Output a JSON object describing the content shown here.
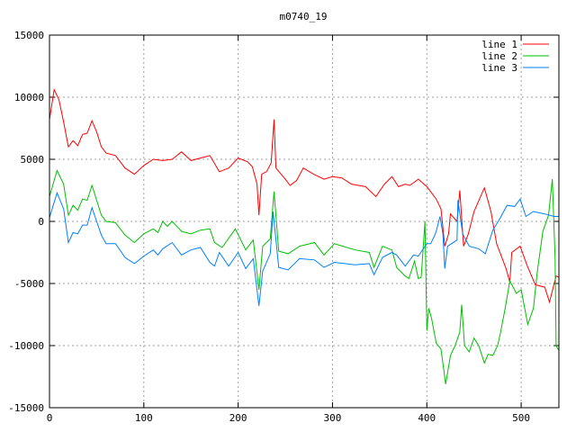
{
  "chart_data": {
    "type": "line",
    "title": "m0740_19",
    "xlabel": "",
    "ylabel": "",
    "xlim": [
      0,
      540
    ],
    "ylim": [
      -15000,
      15000
    ],
    "xticks": [
      0,
      100,
      200,
      300,
      400,
      500
    ],
    "yticks": [
      -15000,
      -10000,
      -5000,
      0,
      5000,
      10000,
      15000
    ],
    "grid": true,
    "legend_position": "top-right",
    "series": [
      {
        "name": "line 1",
        "color": "#ff0000",
        "x": [
          0,
          5,
          10,
          15,
          20,
          25,
          30,
          35,
          40,
          45,
          50,
          55,
          60,
          70,
          80,
          90,
          100,
          110,
          120,
          130,
          140,
          150,
          160,
          170,
          180,
          190,
          200,
          210,
          215,
          220,
          222,
          225,
          230,
          235,
          238,
          240,
          250,
          255,
          262,
          269,
          280,
          291,
          300,
          310,
          320,
          335,
          346,
          355,
          363,
          370,
          377,
          382,
          391,
          400,
          410,
          415,
          419,
          423,
          425,
          432,
          435,
          439,
          444,
          450,
          461,
          468,
          474,
          484,
          488,
          490,
          499,
          506,
          515,
          525,
          530,
          537,
          540
        ],
        "y": [
          8200,
          10600,
          9800,
          8000,
          6000,
          6500,
          6100,
          7000,
          7100,
          8100,
          7200,
          6000,
          5500,
          5300,
          4300,
          3800,
          4500,
          5000,
          4900,
          5000,
          5600,
          4900,
          5100,
          5300,
          4000,
          4300,
          5100,
          4800,
          4400,
          3000,
          500,
          3800,
          4000,
          4700,
          8200,
          4300,
          3400,
          2900,
          3300,
          4300,
          3800,
          3400,
          3600,
          3500,
          3000,
          2800,
          2000,
          3000,
          3600,
          2800,
          3000,
          2900,
          3400,
          2800,
          1800,
          1000,
          -2000,
          -1000,
          600,
          0,
          2500,
          -2000,
          -1000,
          800,
          2700,
          800,
          -1800,
          -3800,
          -4900,
          -2500,
          -2000,
          -3500,
          -5100,
          -5300,
          -6500,
          -4400,
          -4500
        ]
      },
      {
        "name": "line 2",
        "color": "#00c000",
        "x": [
          0,
          8,
          15,
          20,
          25,
          30,
          35,
          40,
          45,
          50,
          55,
          60,
          70,
          80,
          90,
          100,
          110,
          115,
          120,
          125,
          130,
          140,
          150,
          160,
          170,
          175,
          183,
          197,
          208,
          216,
          222,
          226,
          234,
          238,
          243,
          253,
          265,
          281,
          291,
          302,
          324,
          339,
          344,
          353,
          363,
          368,
          377,
          381,
          387,
          391,
          394,
          398,
          400,
          402,
          405,
          410,
          415,
          420,
          425,
          430,
          435,
          437,
          440,
          445,
          450,
          455,
          461,
          465,
          470,
          475,
          478,
          483,
          488,
          495,
          500,
          507,
          513,
          517,
          523,
          529,
          533,
          536,
          537,
          540
        ],
        "y": [
          2000,
          4100,
          3000,
          500,
          1300,
          900,
          1800,
          1700,
          2900,
          1700,
          500,
          0,
          -100,
          -1100,
          -1700,
          -1000,
          -600,
          -900,
          0,
          -400,
          0,
          -800,
          -1000,
          -700,
          -600,
          -1700,
          -2100,
          -600,
          -2300,
          -1500,
          -5500,
          -2000,
          -1400,
          2400,
          -2400,
          -2600,
          -2000,
          -1700,
          -2700,
          -1800,
          -2300,
          -2500,
          -3700,
          -2000,
          -2300,
          -3700,
          -4400,
          -4600,
          -3200,
          -4600,
          -4500,
          0,
          -8800,
          -7000,
          -7800,
          -9800,
          -10300,
          -13100,
          -10800,
          -10000,
          -8900,
          -6700,
          -10000,
          -10500,
          -9400,
          -10000,
          -11400,
          -10700,
          -10800,
          -10000,
          -9000,
          -7000,
          -4800,
          -5800,
          -5500,
          -8300,
          -7000,
          -4100,
          -800,
          500,
          3400,
          -3000,
          -10000,
          -10400
        ]
      },
      {
        "name": "line 3",
        "color": "#0080ff",
        "x": [
          0,
          8,
          15,
          20,
          25,
          30,
          35,
          40,
          45,
          50,
          55,
          60,
          70,
          80,
          90,
          100,
          110,
          115,
          120,
          130,
          140,
          150,
          160,
          170,
          175,
          180,
          190,
          200,
          208,
          216,
          222,
          226,
          234,
          237,
          243,
          253,
          265,
          281,
          291,
          302,
          324,
          339,
          344,
          353,
          363,
          368,
          377,
          386,
          391,
          400,
          404,
          408,
          410,
          414,
          417,
          419,
          422,
          432,
          433,
          438,
          445,
          455,
          462,
          470,
          478,
          485,
          493,
          499,
          505,
          513,
          525,
          535,
          540
        ],
        "y": [
          300,
          2300,
          1000,
          -1700,
          -900,
          -1000,
          -300,
          -300,
          1100,
          0,
          -1100,
          -1800,
          -1800,
          -2900,
          -3400,
          -2800,
          -2300,
          -2700,
          -2200,
          -1700,
          -2700,
          -2300,
          -2100,
          -3300,
          -3600,
          -2500,
          -3600,
          -2500,
          -3800,
          -3000,
          -6800,
          -4000,
          -2600,
          800,
          -3700,
          -3900,
          -3000,
          -3100,
          -3700,
          -3300,
          -3500,
          -3400,
          -4300,
          -2900,
          -2500,
          -2700,
          -3600,
          -2700,
          -2800,
          -1800,
          -1800,
          -1200,
          -800,
          400,
          -1000,
          -3800,
          -2000,
          -1500,
          1700,
          -1000,
          -2000,
          -2200,
          -2600,
          -700,
          300,
          1300,
          1200,
          1800,
          400,
          800,
          600,
          400,
          400
        ]
      }
    ]
  }
}
